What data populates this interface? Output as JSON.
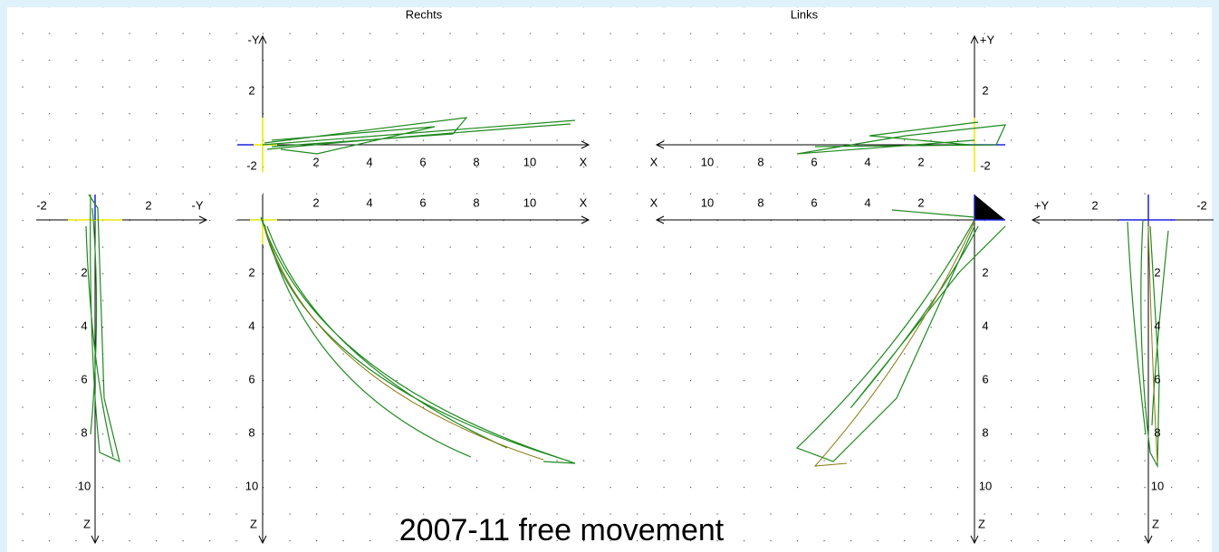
{
  "titles": {
    "right": "Rechts",
    "left": "Links"
  },
  "caption": "2007-11 free movement",
  "side_left": {
    "h_axis": "-Y",
    "h_ticks": [
      "-2",
      "2"
    ],
    "v_axis": "Z",
    "v_ticks": [
      "2",
      "4",
      "6",
      "8",
      "10"
    ]
  },
  "rechts_top": {
    "v_axis": "-Y",
    "v_ticks": [
      "2"
    ],
    "h_axis": "X",
    "h_ticks": [
      "2",
      "4",
      "6",
      "8",
      "10"
    ]
  },
  "rechts_bottom": {
    "v_axis": "Z",
    "v_ticks": [
      "-2",
      "2",
      "4",
      "6",
      "8",
      "10"
    ],
    "h_axis": "X",
    "h_ticks": [
      "2",
      "4",
      "6",
      "8",
      "10"
    ]
  },
  "links_top": {
    "v_axis": "+Y",
    "v_ticks": [
      "2"
    ],
    "h_axis": "X",
    "h_ticks": [
      "10",
      "8",
      "6",
      "4",
      "2"
    ]
  },
  "links_bottom": {
    "v_axis": "Z",
    "v_ticks": [
      "-2",
      "2",
      "4",
      "6",
      "8",
      "10"
    ],
    "h_axis": "X",
    "h_ticks": [
      "10",
      "8",
      "6",
      "4",
      "2"
    ]
  },
  "side_right": {
    "h_axis": "+Y",
    "h_ticks": [
      "2",
      "-2"
    ],
    "v_axis": "Z",
    "v_ticks": [
      "2",
      "4",
      "6",
      "8",
      "10"
    ]
  }
}
